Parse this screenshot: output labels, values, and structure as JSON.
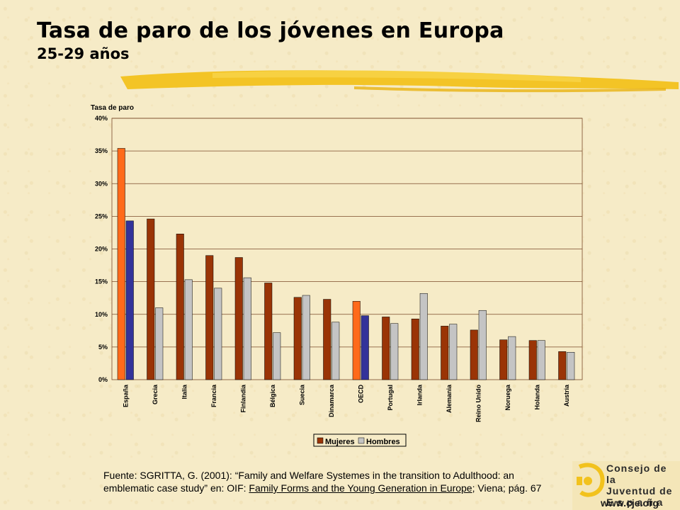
{
  "header": {
    "title": "Tasa de paro de los jóvenes en Europa",
    "subtitle": "25-29 años"
  },
  "chart_data": {
    "type": "bar",
    "ylabel": "Tasa de paro",
    "ylim": [
      0,
      40
    ],
    "yticks": [
      "0%",
      "5%",
      "10%",
      "15%",
      "20%",
      "25%",
      "30%",
      "35%",
      "40%"
    ],
    "grid": true,
    "legend_position": "bottom",
    "categories": [
      "España",
      "Grecia",
      "Italia",
      "Francia",
      "Finlandia",
      "Bélgica",
      "Suecia",
      "Dinamarca",
      "OECD",
      "Portugal",
      "Irlanda",
      "Alemania",
      "Reino Unido",
      "Noruega",
      "Holanda",
      "Austria"
    ],
    "series": [
      {
        "name": "Mujeres",
        "values": [
          35.4,
          24.6,
          22.3,
          19.0,
          18.7,
          14.8,
          12.6,
          12.3,
          12.0,
          9.6,
          9.3,
          8.2,
          7.6,
          6.1,
          6.0,
          4.3
        ]
      },
      {
        "name": "Hombres",
        "values": [
          24.3,
          11.0,
          15.3,
          14.0,
          15.6,
          7.2,
          12.9,
          8.8,
          9.8,
          8.6,
          13.2,
          8.5,
          10.6,
          6.6,
          6.0,
          4.2
        ]
      }
    ],
    "highlight": {
      "categories": [
        "España",
        "OECD"
      ],
      "mujeres_color": "#ff6a1a",
      "hombres_color": "#33339a"
    },
    "colors": {
      "mujeres": "#9a3406",
      "hombres": "#c4c4c4"
    }
  },
  "source": {
    "prefix": "Fuente: SGRITTA, G. (2001): “Family and Welfare Systemes in the transition to Adulthood: an emblematic case study” en: OIF: ",
    "underlined": "Family Forms and the Young Generation in Europe",
    "suffix": "; Viena; pág. 67"
  },
  "logo": {
    "lines": [
      "Consejo de la",
      "Juventud de",
      "E s p a ñ a"
    ],
    "url": "www.cje.org"
  }
}
